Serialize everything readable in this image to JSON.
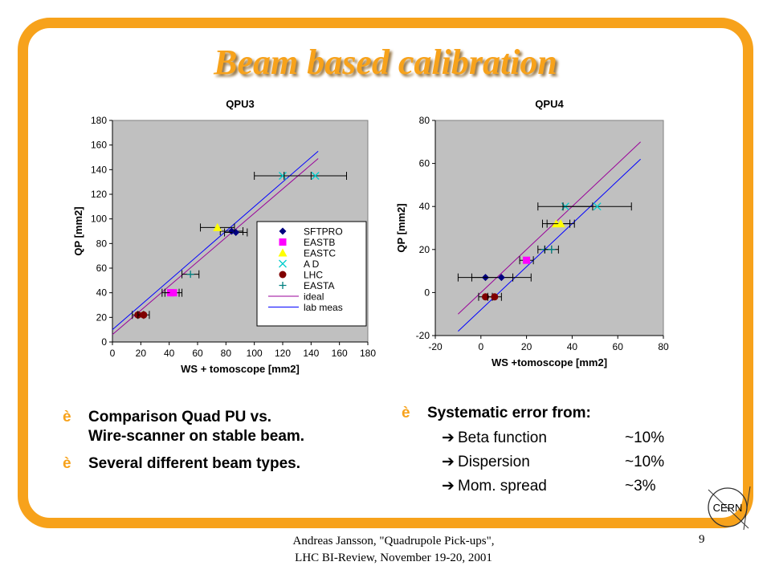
{
  "slide_title": "Beam based calibration",
  "chart_data": [
    {
      "type": "scatter",
      "title": "QPU3",
      "xlabel": "WS + tomoscope [mm2]",
      "ylabel": "QP [mm2]",
      "xlim": [
        0,
        180
      ],
      "ylim": [
        0,
        180
      ],
      "xticks": [
        0,
        20,
        40,
        60,
        80,
        100,
        120,
        140,
        160,
        180
      ],
      "yticks": [
        0,
        20,
        40,
        60,
        80,
        100,
        120,
        140,
        160,
        180
      ],
      "grid": false,
      "plot_bg": "#c0c0c0",
      "legend_position": "right",
      "series": [
        {
          "name": "SFTPRO",
          "marker": "diamond",
          "color": "#000080",
          "points": [
            {
              "x": 84,
              "y": 90,
              "xerr": 8
            },
            {
              "x": 87,
              "y": 89,
              "xerr": 8
            }
          ]
        },
        {
          "name": "EASTB",
          "marker": "square",
          "color": "#ff00ff",
          "points": [
            {
              "x": 41,
              "y": 40,
              "xerr": 6
            },
            {
              "x": 43,
              "y": 40,
              "xerr": 6
            }
          ]
        },
        {
          "name": "EASTC",
          "marker": "triangle",
          "color": "#ffff00",
          "points": [
            {
              "x": 74,
              "y": 93,
              "xerr": 12
            }
          ]
        },
        {
          "name": "A D",
          "marker": "x",
          "color": "#00cccc",
          "points": [
            {
              "x": 120,
              "y": 135,
              "xerr": 20
            },
            {
              "x": 143,
              "y": 135,
              "xerr": 22
            }
          ]
        },
        {
          "name": "LHC",
          "marker": "circle",
          "color": "#800000",
          "points": [
            {
              "x": 18,
              "y": 22,
              "xerr": 4
            },
            {
              "x": 22,
              "y": 22,
              "xerr": 4
            }
          ]
        },
        {
          "name": "EASTA",
          "marker": "plus",
          "color": "#008080",
          "points": [
            {
              "x": 55,
              "y": 55,
              "xerr": 6
            }
          ]
        }
      ],
      "lines": [
        {
          "name": "ideal",
          "color": "#990099",
          "x": [
            0,
            145
          ],
          "y": [
            6,
            149
          ]
        },
        {
          "name": "lab meas",
          "color": "#0000ff",
          "x": [
            0,
            145
          ],
          "y": [
            10,
            155
          ]
        }
      ]
    },
    {
      "type": "scatter",
      "title": "QPU4",
      "xlabel": "WS +tomoscope [mm2]",
      "ylabel": "QP  [mm2]",
      "xlim": [
        -20,
        80
      ],
      "ylim": [
        -20,
        80
      ],
      "xticks": [
        -20,
        0,
        20,
        40,
        60,
        80
      ],
      "yticks": [
        -20,
        0,
        20,
        40,
        60,
        80
      ],
      "grid": false,
      "plot_bg": "#c0c0c0",
      "series": [
        {
          "name": "SFTPRO",
          "marker": "diamond",
          "color": "#000080",
          "points": [
            {
              "x": 2,
              "y": 7,
              "xerr": 12
            },
            {
              "x": 9,
              "y": 7,
              "xerr": 13
            }
          ]
        },
        {
          "name": "EASTB",
          "marker": "square",
          "color": "#ff00ff",
          "points": [
            {
              "x": 20,
              "y": 15,
              "xerr": 3
            }
          ]
        },
        {
          "name": "EASTC",
          "marker": "triangle",
          "color": "#ffff00",
          "points": [
            {
              "x": 33,
              "y": 32,
              "xerr": 6
            },
            {
              "x": 35,
              "y": 32,
              "xerr": 6
            }
          ]
        },
        {
          "name": "A D",
          "marker": "x",
          "color": "#00cccc",
          "points": [
            {
              "x": 37,
              "y": 40,
              "xerr": 12
            },
            {
              "x": 51,
              "y": 40,
              "xerr": 15
            }
          ]
        },
        {
          "name": "LHC",
          "marker": "circle",
          "color": "#800000",
          "points": [
            {
              "x": 2,
              "y": -2,
              "xerr": 3
            },
            {
              "x": 6,
              "y": -2,
              "xerr": 3
            }
          ]
        },
        {
          "name": "EASTA",
          "marker": "plus",
          "color": "#008080",
          "points": [
            {
              "x": 28,
              "y": 20,
              "xerr": 3
            },
            {
              "x": 31,
              "y": 20,
              "xerr": 3
            }
          ]
        }
      ],
      "lines": [
        {
          "name": "ideal",
          "color": "#990099",
          "x": [
            -10,
            70
          ],
          "y": [
            -10,
            70
          ]
        },
        {
          "name": "lab meas",
          "color": "#0000ff",
          "x": [
            -10,
            70
          ],
          "y": [
            -18,
            62
          ]
        }
      ]
    }
  ],
  "bullets_left": [
    {
      "line1": "Comparison Quad PU vs.",
      "line2": "Wire-scanner on stable beam."
    },
    {
      "line1": "Several different beam types.",
      "line2": ""
    }
  ],
  "bullets_right": {
    "heading": "Systematic error from:",
    "items": [
      {
        "label": "Beta function",
        "value": "~10%"
      },
      {
        "label": "Dispersion",
        "value": "~10%"
      },
      {
        "label": "Mom. spread",
        "value": "~3%"
      }
    ]
  },
  "arrow_glyph": "è",
  "sub_arrow_glyph": "➔",
  "footer": {
    "line1": "Andreas Jansson, \"Quadrupole Pick-ups\",",
    "line2": "LHC BI-Review, November 19-20, 2001"
  },
  "page_number": "9",
  "logo_text": "CERN",
  "colors": {
    "accent": "#f7a21b",
    "plot_bg": "#c0c0c0"
  }
}
